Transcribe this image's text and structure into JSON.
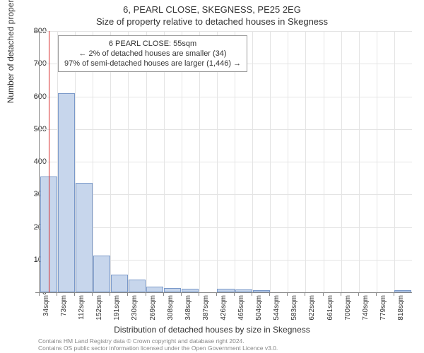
{
  "title": "6, PEARL CLOSE, SKEGNESS, PE25 2EG",
  "subtitle": "Size of property relative to detached houses in Skegness",
  "chart": {
    "type": "bar",
    "ylim": [
      0,
      800
    ],
    "ytick_step": 100,
    "yticks": [
      0,
      100,
      200,
      300,
      400,
      500,
      600,
      700,
      800
    ],
    "categories": [
      "34sqm",
      "73sqm",
      "112sqm",
      "152sqm",
      "191sqm",
      "230sqm",
      "269sqm",
      "308sqm",
      "348sqm",
      "387sqm",
      "426sqm",
      "465sqm",
      "504sqm",
      "544sqm",
      "583sqm",
      "622sqm",
      "661sqm",
      "700sqm",
      "740sqm",
      "779sqm",
      "818sqm"
    ],
    "values": [
      355,
      610,
      335,
      112,
      55,
      38,
      18,
      12,
      10,
      0,
      10,
      8,
      6,
      0,
      0,
      0,
      0,
      0,
      0,
      0,
      6
    ],
    "bar_color": "#c7d6ec",
    "bar_border": "#7a99c9",
    "grid_color": "#e4e4e4",
    "ref_line_x_index": 0.53,
    "ref_line_color": "#d62728",
    "ylabel": "Number of detached properties",
    "xlabel": "Distribution of detached houses by size in Skegness",
    "label_fontsize": 12,
    "tick_fontsize": 11,
    "background_color": "#ffffff"
  },
  "info_box": {
    "line1": "6 PEARL CLOSE: 55sqm",
    "line2": "← 2% of detached houses are smaller (34)",
    "line3": "97% of semi-detached houses are larger (1,446) →"
  },
  "footer": {
    "line1": "Contains HM Land Registry data © Crown copyright and database right 2024.",
    "line2": "Contains OS public sector information licensed under the Open Government Licence v3.0."
  }
}
